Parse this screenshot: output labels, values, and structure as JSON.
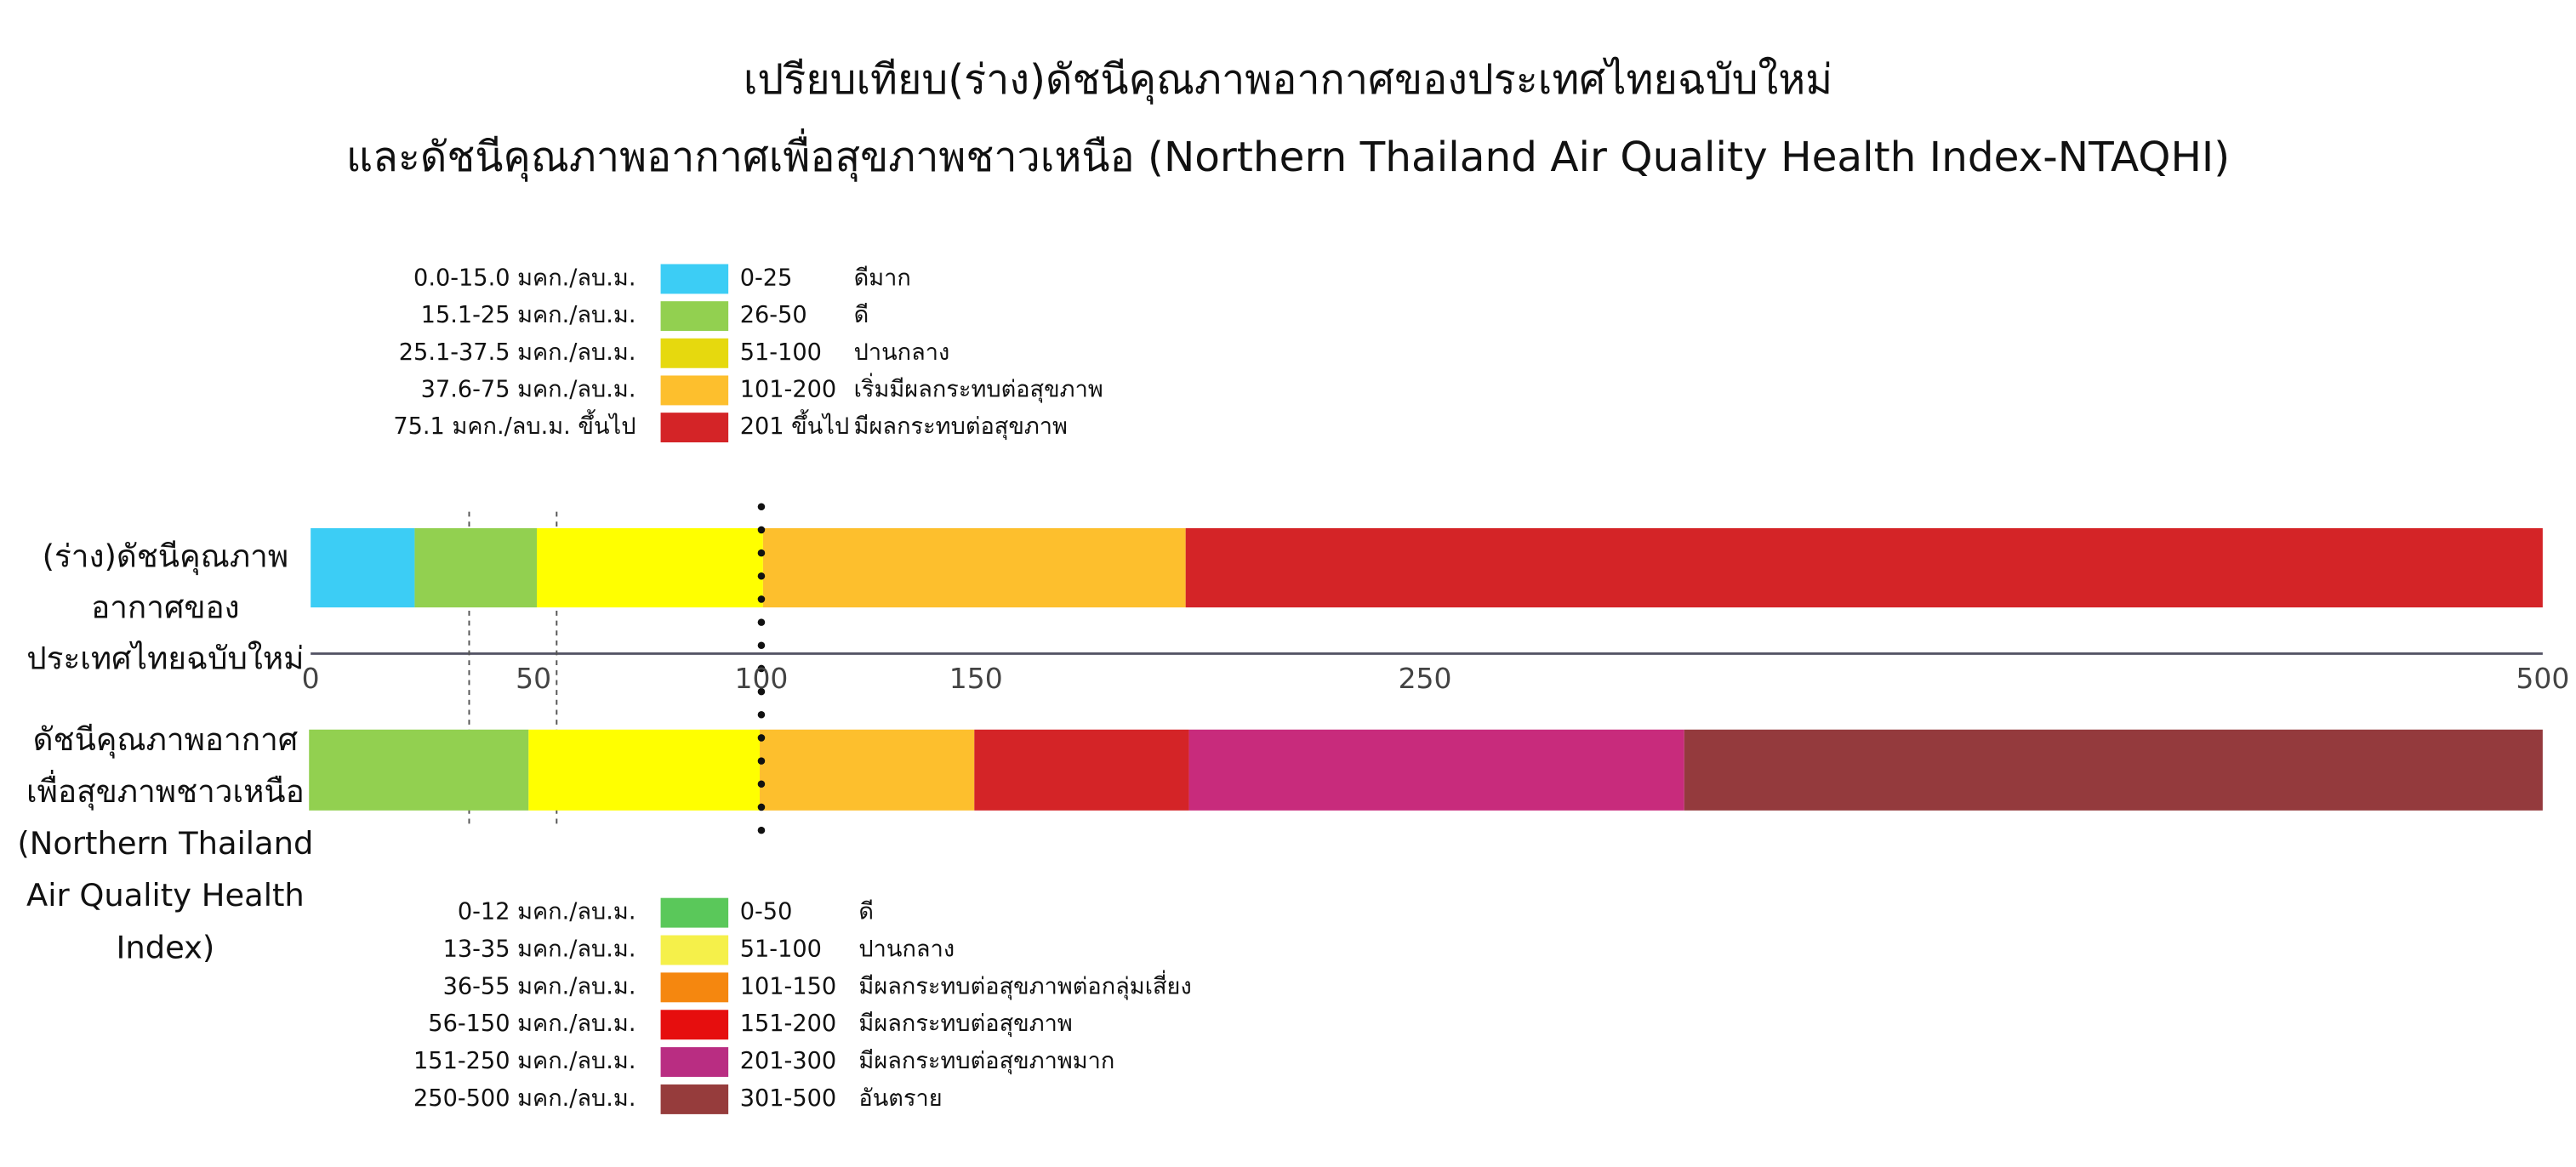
{
  "title": [
    "เปรียบเทียบ(ร่าง)ดัชนีคุณภาพอากาศของประเทศไทยฉบับใหม่",
    "และดัชนีคุณภาพอากาศเพื่อสุขภาพชาวเหนือ (Northern Thailand Air Quality Health Index-NTAQHI)"
  ],
  "top_label": [
    "(ร่าง)ดัชนีคุณภาพ",
    "อากาศของ",
    "ประเทศไทยฉบับใหม่"
  ],
  "bottom_label": [
    "ดัชนีคุณภาพอากาศ",
    "เพื่อสุขภาพชาวเหนือ",
    "(Northern Thailand",
    "Air Quality Health",
    "Index)"
  ],
  "axis_ticks": [
    0,
    50,
    100,
    150,
    250,
    500
  ],
  "top_legend": [
    {
      "range": "0.0-15.0 มคก./ลบ.ม.",
      "index": "0-25",
      "description": "ดีมาก",
      "color": "#3ccdf5"
    },
    {
      "range": "15.1-25 มคก./ลบ.ม.",
      "index": "26-50",
      "description": "ดี",
      "color": "#92d050"
    },
    {
      "range": "25.1-37.5 มคก./ลบ.ม.",
      "index": "51-100",
      "description": "ปานกลาง",
      "color": "#e6d90e"
    },
    {
      "range": "37.6-75 มคก./ลบ.ม.",
      "index": "101-200",
      "description": "เริ่มมีผลกระทบต่อสุขภาพ",
      "color": "#fdbf2d"
    },
    {
      "range": "75.1 มคก./ลบ.ม. ขึ้นไป",
      "index": "201 ขึ้นไป",
      "description": "มีผลกระทบต่อสุขภาพ",
      "color": "#d42427"
    }
  ],
  "bottom_legend": [
    {
      "range": "0-12 มคก./ลบ.ม.",
      "index": "0-50",
      "description": "ดี",
      "color": "#5ac85a"
    },
    {
      "range": "13-35 มคก./ลบ.ม.",
      "index": "51-100",
      "description": "ปานกลาง",
      "color": "#f5f04a"
    },
    {
      "range": "36-55 มคก./ลบ.ม.",
      "index": "101-150",
      "description": "มีผลกระทบต่อสุขภาพต่อกลุ่มเสี่ยง",
      "color": "#f5870f"
    },
    {
      "range": "56-150 มคก./ลบ.ม.",
      "index": "151-200",
      "description": "มีผลกระทบต่อสุขภาพ",
      "color": "#e60e0e"
    },
    {
      "range": "151-250 มคก./ลบ.ม.",
      "index": "201-300",
      "description": "มีผลกระทบต่อสุขภาพมาก",
      "color": "#b92d82"
    },
    {
      "range": "250-500 มคก./ลบ.ม.",
      "index": "301-500",
      "description": "อันตราย",
      "color": "#963c3c"
    }
  ],
  "top_bar_colors": [
    "#3ccdf5",
    "#92d050",
    "#ffff00",
    "#fdbf2d",
    "#d42427"
  ],
  "bottom_bar_colors": [
    "#92d050",
    "#ffff00",
    "#fdbf2d",
    "#d42427",
    "#c82b7c",
    "#943a3d"
  ]
}
